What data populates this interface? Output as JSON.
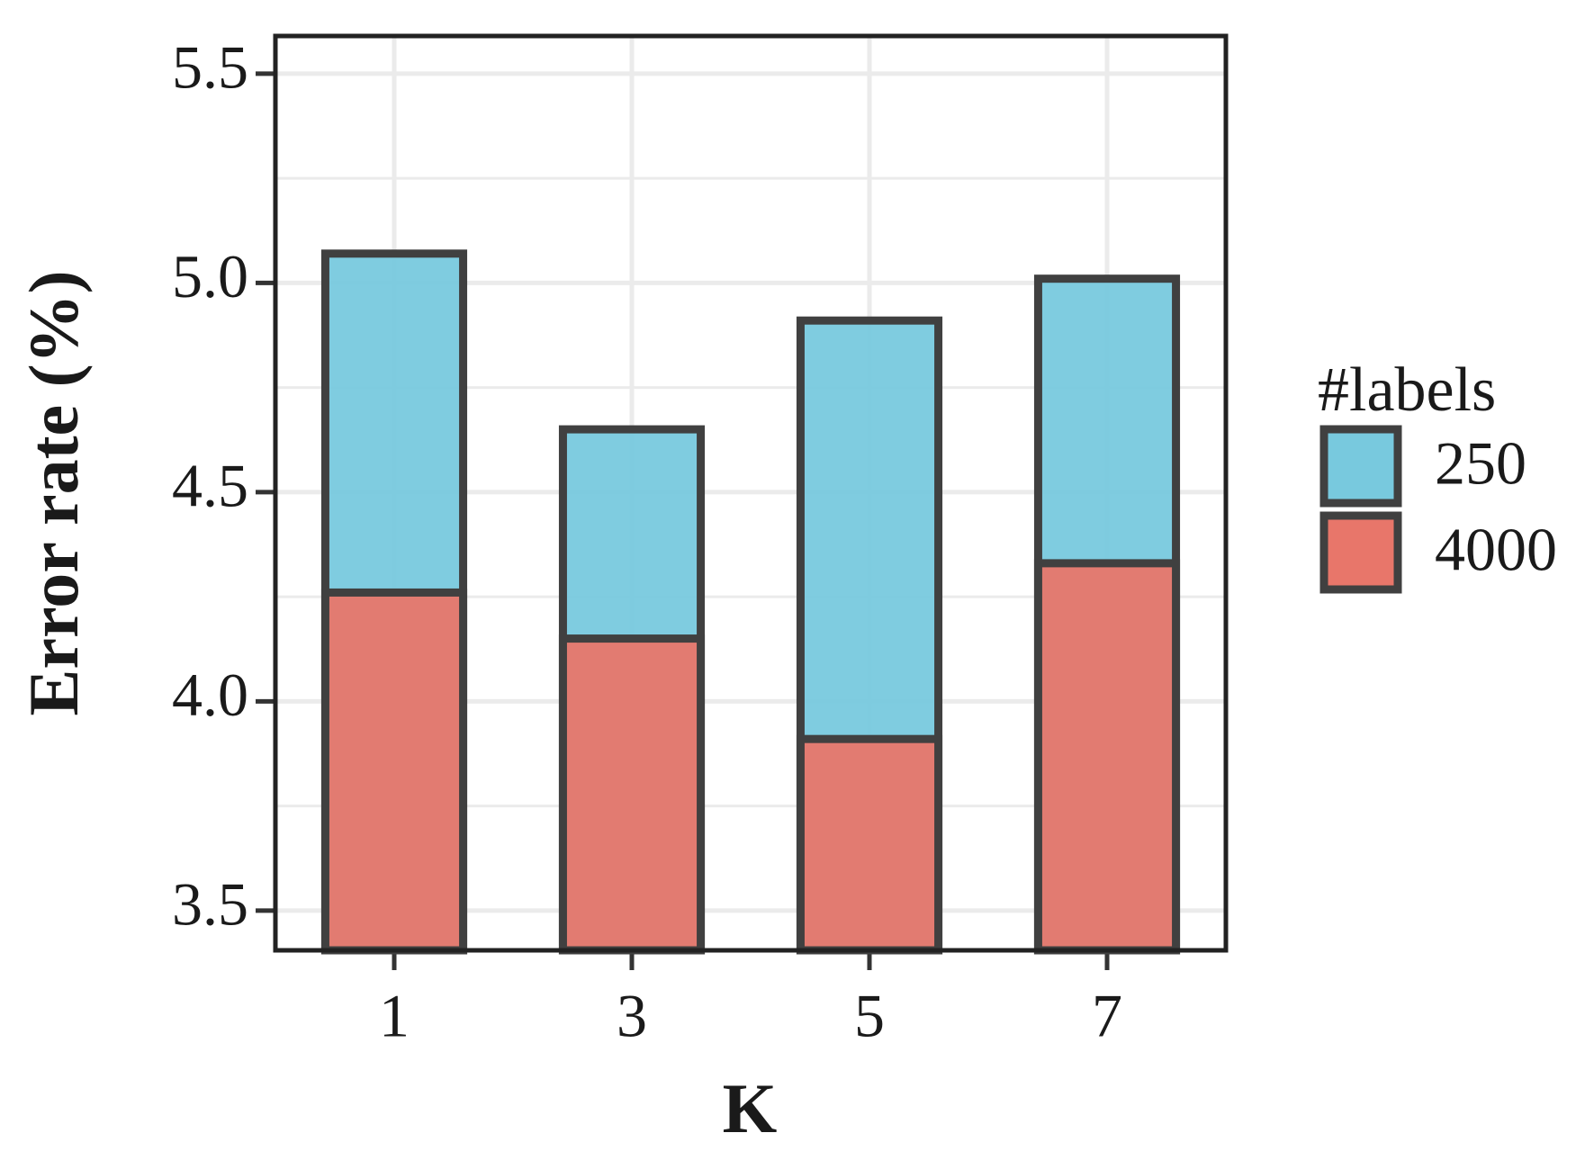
{
  "chart_data": {
    "type": "bar",
    "x_label": "K",
    "y_label": "Error rate (%)",
    "categories": [
      "1",
      "3",
      "5",
      "7"
    ],
    "series": [
      {
        "name": "250",
        "color": "#78c9de",
        "values": [
          5.07,
          4.65,
          4.91,
          5.01
        ]
      },
      {
        "name": "4000",
        "color": "#e8766a",
        "values": [
          4.26,
          4.15,
          3.91,
          4.33
        ]
      }
    ],
    "legend_title": "#labels",
    "ylim": [
      3.405,
      5.59
    ],
    "yticks": [
      {
        "value": 3.5,
        "label": "3.5"
      },
      {
        "value": 4,
        "label": "4.0"
      },
      {
        "value": 4.5,
        "label": "4.5"
      },
      {
        "value": 5,
        "label": "5.0"
      },
      {
        "value": 5.5,
        "label": "5.5"
      }
    ],
    "grid": true,
    "legend": "right"
  }
}
